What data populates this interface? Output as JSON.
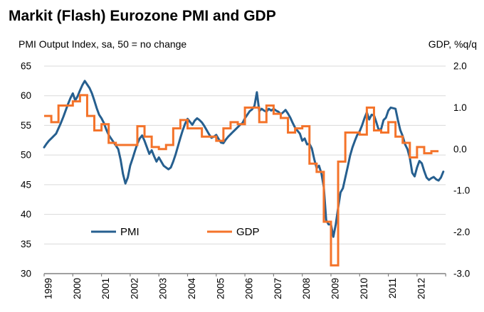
{
  "title": "Markit (Flash) Eurozone PMI and GDP",
  "axes": {
    "left_label": "PMI Output Index, sa, 50 = no change",
    "right_label": "GDP, %q/q",
    "left_ticks": [
      65,
      60,
      55,
      50,
      45,
      40,
      35,
      30
    ],
    "right_tick_labels": [
      "2.0",
      "1.0",
      "0.0",
      "-1.0",
      "-2.0",
      "-3.0"
    ],
    "right_tick_values": [
      2,
      1,
      0,
      -1,
      -2,
      -3
    ],
    "x_tick_labels": [
      "1999",
      "2000",
      "2001",
      "2002",
      "2003",
      "2004",
      "2005",
      "2006",
      "2007",
      "2008",
      "2009",
      "2010",
      "2011",
      "2012"
    ]
  },
  "legend": [
    {
      "label": "PMI",
      "color": "#265F8F"
    },
    {
      "label": "GDP",
      "color": "#F4732A"
    }
  ],
  "colors": {
    "pmi_line": "#265F8F",
    "gdp_line": "#F4732A",
    "gridline": "#D9D9D9",
    "axis_line": "#808080",
    "text": "#000000",
    "background": "#FFFFFF"
  },
  "chart_data": {
    "type": "line",
    "title": "Markit (Flash) Eurozone PMI and GDP",
    "left_axis": {
      "label": "PMI Output Index, sa, 50 = no change",
      "min": 30,
      "max": 65,
      "tick_step": 5
    },
    "right_axis": {
      "label": "GDP, %q/q",
      "min": -3.0,
      "max": 2.0,
      "tick_step": 1.0
    },
    "x_axis": {
      "start_year": 1999,
      "end_year": 2013,
      "tick_years": [
        1999,
        2000,
        2001,
        2002,
        2003,
        2004,
        2005,
        2006,
        2007,
        2008,
        2009,
        2010,
        2011,
        2012
      ]
    },
    "grid": "horizontal",
    "legend_position": "inside-bottom-left",
    "series": [
      {
        "name": "PMI",
        "axis": "left",
        "style": "line",
        "color": "#265F8F",
        "frequency": "monthly",
        "start": "1999-01",
        "values": [
          51.3,
          51.9,
          52.4,
          52.8,
          53.2,
          53.6,
          54.5,
          55.4,
          56.4,
          57.5,
          58.6,
          59.6,
          60.4,
          59.2,
          59.9,
          60.9,
          61.8,
          62.5,
          61.9,
          61.3,
          60.4,
          59.2,
          57.9,
          56.8,
          56.2,
          55.4,
          54.3,
          53.4,
          52.8,
          52.2,
          51.6,
          51.0,
          49.2,
          46.8,
          45.2,
          46.2,
          48.2,
          49.4,
          50.7,
          51.9,
          52.8,
          53.3,
          52.4,
          51.3,
          50.2,
          50.8,
          49.8,
          48.9,
          49.6,
          48.9,
          48.2,
          47.9,
          47.6,
          47.9,
          48.9,
          50.1,
          51.5,
          52.9,
          54.2,
          55.3,
          56.1,
          55.6,
          55.1,
          55.8,
          56.2,
          55.9,
          55.5,
          54.9,
          54.2,
          53.5,
          52.9,
          53.1,
          53.4,
          52.7,
          52.1,
          52.0,
          52.6,
          53.1,
          53.5,
          53.9,
          54.3,
          54.7,
          55.1,
          55.4,
          56.2,
          56.8,
          57.4,
          57.7,
          58.3,
          60.6,
          57.4,
          57.8,
          57.5,
          57.3,
          57.8,
          57.5,
          57.8,
          57.5,
          57.3,
          56.9,
          57.2,
          57.6,
          57.0,
          56.3,
          55.4,
          54.6,
          54.1,
          53.6,
          52.4,
          52.8,
          51.8,
          51.9,
          51.1,
          49.3,
          47.8,
          48.2,
          46.9,
          44.6,
          39.0,
          38.3,
          38.3,
          36.2,
          38.3,
          41.1,
          43.7,
          44.4,
          46.2,
          48.0,
          49.9,
          51.3,
          52.4,
          53.4,
          54.0,
          55.0,
          56.2,
          57.2,
          56.0,
          56.8,
          56.7,
          55.5,
          54.2,
          54.4,
          55.9,
          56.3,
          57.5,
          58.0,
          57.9,
          57.8,
          55.9,
          54.2,
          53.2,
          51.8,
          51.0,
          49.5,
          47.0,
          46.4,
          47.9,
          49.0,
          48.6,
          47.3,
          46.2,
          45.8,
          46.1,
          46.3,
          45.9,
          45.7,
          46.2,
          47.2
        ]
      },
      {
        "name": "GDP",
        "axis": "right",
        "style": "step",
        "color": "#F4732A",
        "frequency": "quarterly",
        "start": "1999Q1",
        "values": [
          0.8,
          0.65,
          1.05,
          1.05,
          1.15,
          1.3,
          0.8,
          0.45,
          0.6,
          0.15,
          0.1,
          0.1,
          0.1,
          0.55,
          0.3,
          0.05,
          0.0,
          0.1,
          0.5,
          0.7,
          0.5,
          0.5,
          0.3,
          0.3,
          0.2,
          0.5,
          0.65,
          0.6,
          1.0,
          1.0,
          0.65,
          1.05,
          0.85,
          0.75,
          0.4,
          0.5,
          0.55,
          -0.35,
          -0.55,
          -1.75,
          -2.8,
          -0.3,
          0.4,
          0.4,
          0.35,
          1.0,
          0.45,
          0.4,
          0.65,
          0.3,
          0.15,
          -0.2,
          0.05,
          -0.1,
          -0.05
        ]
      }
    ]
  }
}
